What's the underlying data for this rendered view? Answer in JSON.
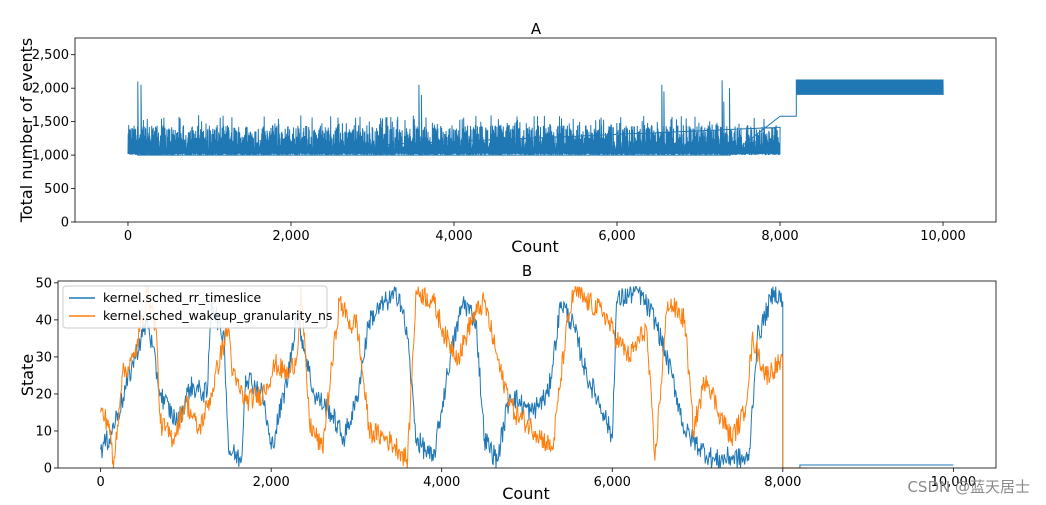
{
  "watermark": "CSDN @蓝天居士",
  "colors": {
    "series1": "#1f77b4",
    "series2": "#ff7f0e"
  },
  "chart_data": [
    {
      "type": "line",
      "title": "A",
      "xlabel": "Count",
      "ylabel": "Total number of events",
      "xlim": [
        -650,
        10650
      ],
      "ylim": [
        0,
        2750
      ],
      "xticks": [
        0,
        2000,
        4000,
        6000,
        8000,
        10000
      ],
      "xtick_labels": [
        "0",
        "2,000",
        "4,000",
        "6,000",
        "8,000",
        "10,000"
      ],
      "yticks": [
        0,
        500,
        1000,
        1500,
        2000,
        2500
      ],
      "ytick_labels": [
        "0",
        "500",
        "1,000",
        "1,500",
        "2,000",
        "2,500"
      ],
      "series": [
        {
          "name": "Total number of events",
          "description": "Noisy signal between ~1,000 and ~1,600 for count 0–8,000 (spikes ~2,100 near 150, 3,600, 6,550, 7,300), step at ~1,600 from 8,000–8,200, then oscillating band 1,900–2,130 until 10,000",
          "points": [
            [
              0,
              1000
            ],
            [
              150,
              2100
            ],
            [
              200,
              1050
            ],
            [
              3550,
              1150
            ],
            [
              3600,
              2050
            ],
            [
              3650,
              1050
            ],
            [
              6550,
              2050
            ],
            [
              6600,
              1050
            ],
            [
              7300,
              2120
            ],
            [
              7350,
              1050
            ],
            [
              8000,
              1000
            ],
            [
              8000,
              1580
            ],
            [
              8200,
              1580
            ],
            [
              8200,
              2130
            ],
            [
              10000,
              1900
            ]
          ],
          "band": {
            "x_start": 8200,
            "x_end": 10000,
            "low": 1900,
            "high": 2130
          },
          "noise": {
            "x_start": 0,
            "x_end": 8000,
            "base": 1000,
            "typical_high": 1450,
            "max": 1600
          }
        }
      ]
    },
    {
      "type": "line",
      "title": "B",
      "xlabel": "Count",
      "ylabel": "State",
      "xlim": [
        -500,
        10500
      ],
      "ylim": [
        0,
        50.5
      ],
      "xticks": [
        0,
        2000,
        4000,
        6000,
        8000,
        10000
      ],
      "xtick_labels": [
        "0",
        "2,000",
        "4,000",
        "6,000",
        "8,000",
        "10,000"
      ],
      "yticks": [
        0,
        10,
        20,
        30,
        40,
        50
      ],
      "ytick_labels": [
        "0",
        "10",
        "20",
        "30",
        "40",
        "50"
      ],
      "legend_position": "top-left",
      "series": [
        {
          "name": "kernel.sched_rr_timeslice",
          "color_key": "series1",
          "anchors": [
            [
              0,
              5
            ],
            [
              100,
              8
            ],
            [
              250,
              18
            ],
            [
              400,
              30
            ],
            [
              550,
              40
            ],
            [
              700,
              20
            ],
            [
              900,
              12
            ],
            [
              1050,
              22
            ],
            [
              1250,
              20
            ],
            [
              1300,
              45
            ],
            [
              1450,
              35
            ],
            [
              1500,
              5
            ],
            [
              1650,
              2
            ],
            [
              1700,
              25
            ],
            [
              1900,
              20
            ],
            [
              2000,
              5
            ],
            [
              2200,
              25
            ],
            [
              2300,
              42
            ],
            [
              2500,
              20
            ],
            [
              2700,
              15
            ],
            [
              2850,
              8
            ],
            [
              3000,
              18
            ],
            [
              3150,
              40
            ],
            [
              3350,
              45
            ],
            [
              3500,
              47
            ],
            [
              3600,
              35
            ],
            [
              3700,
              8
            ],
            [
              3900,
              2
            ],
            [
              4100,
              30
            ],
            [
              4250,
              45
            ],
            [
              4400,
              40
            ],
            [
              4500,
              8
            ],
            [
              4650,
              2
            ],
            [
              4800,
              20
            ],
            [
              5050,
              15
            ],
            [
              5250,
              20
            ],
            [
              5400,
              45
            ],
            [
              5550,
              38
            ],
            [
              5700,
              25
            ],
            [
              5900,
              15
            ],
            [
              6000,
              8
            ],
            [
              6050,
              45
            ],
            [
              6300,
              48
            ],
            [
              6500,
              40
            ],
            [
              6700,
              25
            ],
            [
              6850,
              10
            ],
            [
              7050,
              5
            ],
            [
              7200,
              2
            ],
            [
              7400,
              3
            ],
            [
              7600,
              2
            ],
            [
              7700,
              35
            ],
            [
              7900,
              48
            ],
            [
              8000,
              45
            ],
            [
              8000,
              0
            ],
            [
              8200,
              0
            ],
            [
              8200,
              0.8
            ],
            [
              10000,
              0.8
            ]
          ]
        },
        {
          "name": "kernel.sched_wakeup_granularity_ns",
          "color_key": "series2",
          "anchors": [
            [
              0,
              15
            ],
            [
              100,
              12
            ],
            [
              150,
              0
            ],
            [
              250,
              25
            ],
            [
              400,
              30
            ],
            [
              550,
              48
            ],
            [
              650,
              38
            ],
            [
              700,
              12
            ],
            [
              850,
              8
            ],
            [
              1000,
              18
            ],
            [
              1150,
              10
            ],
            [
              1300,
              20
            ],
            [
              1400,
              30
            ],
            [
              1500,
              38
            ],
            [
              1550,
              25
            ],
            [
              1700,
              18
            ],
            [
              1900,
              20
            ],
            [
              2050,
              28
            ],
            [
              2200,
              25
            ],
            [
              2300,
              30
            ],
            [
              2350,
              48
            ],
            [
              2450,
              12
            ],
            [
              2600,
              5
            ],
            [
              2800,
              45
            ],
            [
              2950,
              38
            ],
            [
              3000,
              40
            ],
            [
              3150,
              10
            ],
            [
              3350,
              8
            ],
            [
              3500,
              5
            ],
            [
              3600,
              2
            ],
            [
              3700,
              48
            ],
            [
              3900,
              45
            ],
            [
              4050,
              35
            ],
            [
              4200,
              30
            ],
            [
              4350,
              40
            ],
            [
              4500,
              45
            ],
            [
              4600,
              35
            ],
            [
              4700,
              25
            ],
            [
              4850,
              15
            ],
            [
              5100,
              10
            ],
            [
              5300,
              5
            ],
            [
              5450,
              35
            ],
            [
              5550,
              48
            ],
            [
              5700,
              45
            ],
            [
              5900,
              42
            ],
            [
              6050,
              35
            ],
            [
              6200,
              30
            ],
            [
              6400,
              38
            ],
            [
              6500,
              2
            ],
            [
              6650,
              45
            ],
            [
              6850,
              40
            ],
            [
              6950,
              10
            ],
            [
              7100,
              25
            ],
            [
              7250,
              15
            ],
            [
              7400,
              8
            ],
            [
              7550,
              15
            ],
            [
              7650,
              35
            ],
            [
              7800,
              25
            ],
            [
              7950,
              28
            ],
            [
              8000,
              28
            ],
            [
              8000,
              0
            ],
            [
              8300,
              0
            ]
          ]
        }
      ]
    }
  ]
}
